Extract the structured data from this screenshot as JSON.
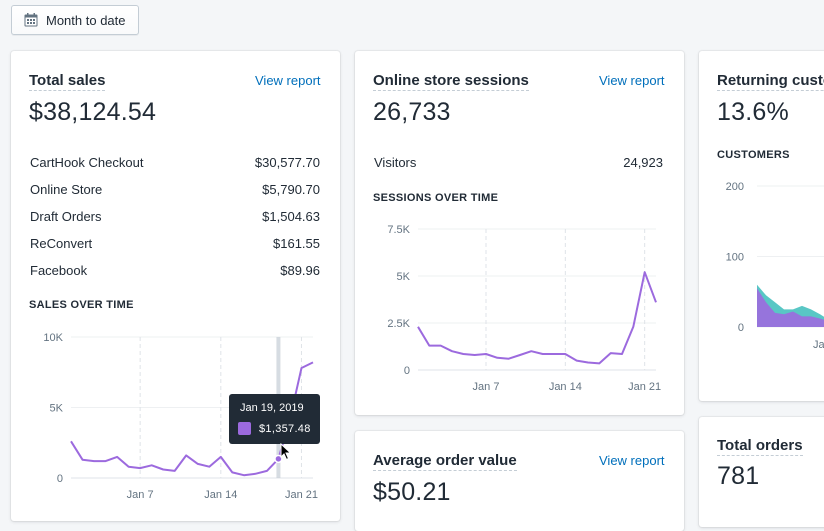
{
  "date_button": {
    "label": "Month to date",
    "icon": "calendar-icon"
  },
  "colors": {
    "line": "#9c6ade",
    "link": "#006fbb",
    "returning_fill": "#9c6ade",
    "returning_fill_2": "#47c1bf"
  },
  "total_sales": {
    "title": "Total sales",
    "view_report": "View report",
    "value": "$38,124.54",
    "rows": [
      {
        "label": "CartHook Checkout",
        "value": "$30,577.70"
      },
      {
        "label": "Online Store",
        "value": "$5,790.70"
      },
      {
        "label": "Draft Orders",
        "value": "$1,504.63"
      },
      {
        "label": "ReConvert",
        "value": "$161.55"
      },
      {
        "label": "Facebook",
        "value": "$89.96"
      }
    ],
    "section_label": "SALES OVER TIME",
    "tooltip": {
      "date": "Jan 19, 2019",
      "value": "$1,357.48"
    }
  },
  "online_sessions": {
    "title": "Online store sessions",
    "view_report": "View report",
    "value": "26,733",
    "visitors_label": "Visitors",
    "visitors_value": "24,923",
    "section_label": "SESSIONS OVER TIME"
  },
  "returning_customers": {
    "title": "Returning customers",
    "value": "13.6%",
    "section_label": "CUSTOMERS"
  },
  "average_order": {
    "title": "Average order value",
    "view_report": "View report",
    "value": "$50.21"
  },
  "total_orders": {
    "title": "Total orders",
    "value": "781"
  },
  "chart_data": [
    {
      "type": "line",
      "name": "sales-over-time",
      "x": [
        1,
        2,
        3,
        4,
        5,
        6,
        7,
        8,
        9,
        10,
        11,
        12,
        13,
        14,
        15,
        16,
        17,
        18,
        19,
        20,
        21,
        22
      ],
      "values": [
        2600,
        1300,
        1200,
        1200,
        1500,
        800,
        700,
        900,
        600,
        500,
        1600,
        1000,
        800,
        1500,
        400,
        200,
        300,
        500,
        1357.48,
        4200,
        7800,
        8200
      ],
      "x_ticks": [
        {
          "label": "Jan 7",
          "x": 7
        },
        {
          "label": "Jan 14",
          "x": 14
        },
        {
          "label": "Jan 21",
          "x": 21
        }
      ],
      "y_ticks": [
        {
          "label": "10K",
          "v": 10000
        },
        {
          "label": "5K",
          "v": 5000
        },
        {
          "label": "0",
          "v": 0
        }
      ],
      "xlim": [
        1,
        22
      ],
      "ylim": [
        0,
        10000
      ],
      "highlight_x": 19
    },
    {
      "type": "line",
      "name": "sessions-over-time",
      "x": [
        1,
        2,
        3,
        4,
        5,
        6,
        7,
        8,
        9,
        10,
        11,
        12,
        13,
        14,
        15,
        16,
        17,
        18,
        19,
        20,
        21,
        22
      ],
      "values": [
        2300,
        1300,
        1300,
        1000,
        850,
        800,
        850,
        650,
        600,
        800,
        1000,
        850,
        850,
        850,
        500,
        400,
        350,
        900,
        850,
        2300,
        5200,
        3600
      ],
      "x_ticks": [
        {
          "label": "Jan 7",
          "x": 7
        },
        {
          "label": "Jan 14",
          "x": 14
        },
        {
          "label": "Jan 21",
          "x": 21
        }
      ],
      "y_ticks": [
        {
          "label": "7.5K",
          "v": 7500
        },
        {
          "label": "5K",
          "v": 5000
        },
        {
          "label": "2.5K",
          "v": 2500
        },
        {
          "label": "0",
          "v": 0
        }
      ],
      "xlim": [
        1,
        22
      ],
      "ylim": [
        0,
        7500
      ]
    },
    {
      "type": "area",
      "name": "customers-over-time",
      "x": [
        1,
        2,
        3,
        4,
        5,
        6,
        7,
        8,
        9
      ],
      "series": [
        {
          "values": [
            60,
            45,
            35,
            25,
            25,
            30,
            25,
            18,
            10
          ]
        },
        {
          "values": [
            55,
            35,
            20,
            18,
            22,
            15,
            15,
            12,
            8
          ]
        }
      ],
      "y_ticks": [
        {
          "label": "200",
          "v": 200
        },
        {
          "label": "100",
          "v": 100
        },
        {
          "label": "0",
          "v": 0
        }
      ],
      "x_ticks": [
        {
          "label": "Ja",
          "x": 9
        }
      ],
      "ylim": [
        0,
        200
      ]
    }
  ]
}
